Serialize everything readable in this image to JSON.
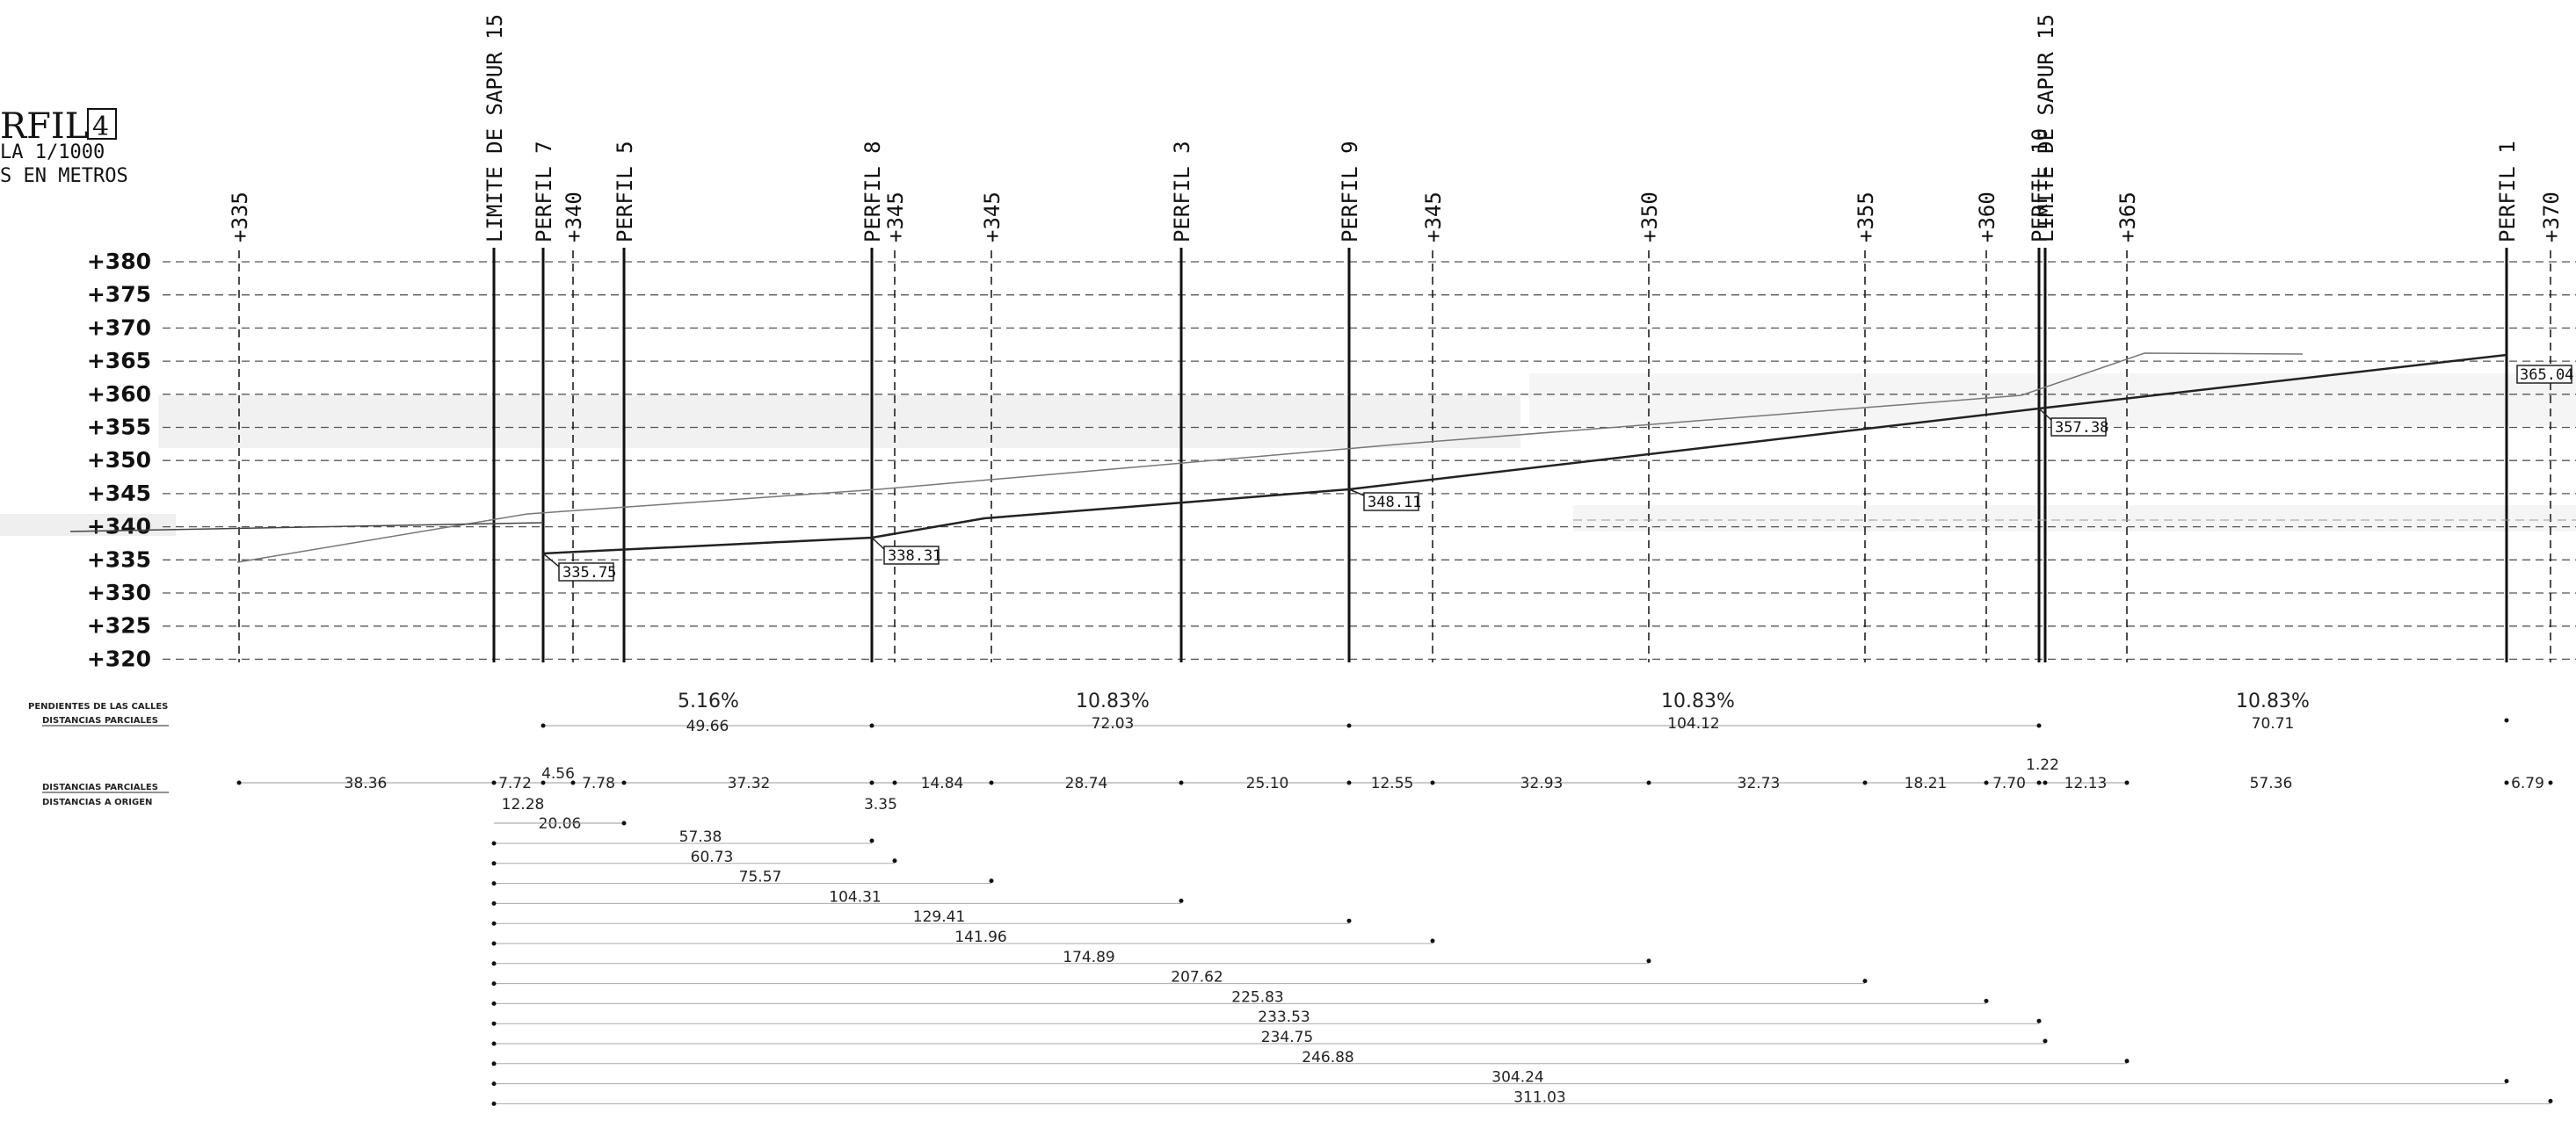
{
  "title": {
    "main": "RFIL",
    "number": "4",
    "scale": "LA 1/1000",
    "units": "S EN METROS"
  },
  "y_axis": {
    "ticks": [
      "+380",
      "+375",
      "+370",
      "+365",
      "+360",
      "+355",
      "+350",
      "+345",
      "+340",
      "+335",
      "+330",
      "+325",
      "+320"
    ]
  },
  "vertical_markers": [
    {
      "id": "v335a",
      "label": "+335",
      "style": "dashed"
    },
    {
      "id": "sapur15a",
      "label": "LIMITE DE SAPUR 15",
      "style": "solid"
    },
    {
      "id": "perfil7",
      "label": "PERFIL 7",
      "style": "solid"
    },
    {
      "id": "v340",
      "label": "+340",
      "style": "dashed"
    },
    {
      "id": "perfil5",
      "label": "PERFIL 5",
      "style": "solid"
    },
    {
      "id": "perfil8",
      "label": "PERFIL 8",
      "style": "solid"
    },
    {
      "id": "v345a",
      "label": "+345",
      "style": "dashed"
    },
    {
      "id": "v345b",
      "label": "+345",
      "style": "dashed"
    },
    {
      "id": "perfil3",
      "label": "PERFIL 3",
      "style": "solid"
    },
    {
      "id": "perfil9",
      "label": "PERFIL 9",
      "style": "solid"
    },
    {
      "id": "v345c",
      "label": "+345",
      "style": "dashed"
    },
    {
      "id": "v350",
      "label": "+350",
      "style": "dashed"
    },
    {
      "id": "v355",
      "label": "+355",
      "style": "dashed"
    },
    {
      "id": "v360",
      "label": "+360",
      "style": "dashed"
    },
    {
      "id": "perfil10",
      "label": "PERFIL 10",
      "style": "solid"
    },
    {
      "id": "sapur15b",
      "label": "LIMITE DE SAPUR 15",
      "style": "solid"
    },
    {
      "id": "v365",
      "label": "+365",
      "style": "dashed"
    },
    {
      "id": "perfil1",
      "label": "PERFIL 1",
      "style": "solid"
    },
    {
      "id": "v370",
      "label": "+370",
      "style": "dashed"
    }
  ],
  "elevation_labels": [
    "335.75",
    "338.31",
    "348.11",
    "357.38",
    "365.04"
  ],
  "band_labels": {
    "slopes_title": "PENDIENTES DE LAS CALLES",
    "partial_title_1": "DISTANCIAS PARCIALES",
    "partial_title_2": "DISTANCIAS PARCIALES",
    "origin_title": "DISTANCIAS A ORIGEN"
  },
  "slopes": [
    "5.16%",
    "10.83%",
    "10.83%",
    "10.83%"
  ],
  "street_distances": [
    "49.66",
    "72.03",
    "104.12",
    "70.71"
  ],
  "partial_distances": [
    "38.36",
    "7.72",
    "4.56",
    "7.78",
    "37.32",
    "14.84",
    "28.74",
    "25.10",
    "12.55",
    "32.93",
    "32.73",
    "18.21",
    "7.70",
    "1.22",
    "12.13",
    "57.36",
    "6.79"
  ],
  "partial_sub": [
    "12.28",
    "20.06",
    "3.35"
  ],
  "origin_distances": [
    "57.38",
    "60.73",
    "75.57",
    "104.31",
    "129.41",
    "141.96",
    "174.89",
    "207.62",
    "225.83",
    "233.53",
    "234.75",
    "246.88",
    "304.24",
    "311.03"
  ]
}
